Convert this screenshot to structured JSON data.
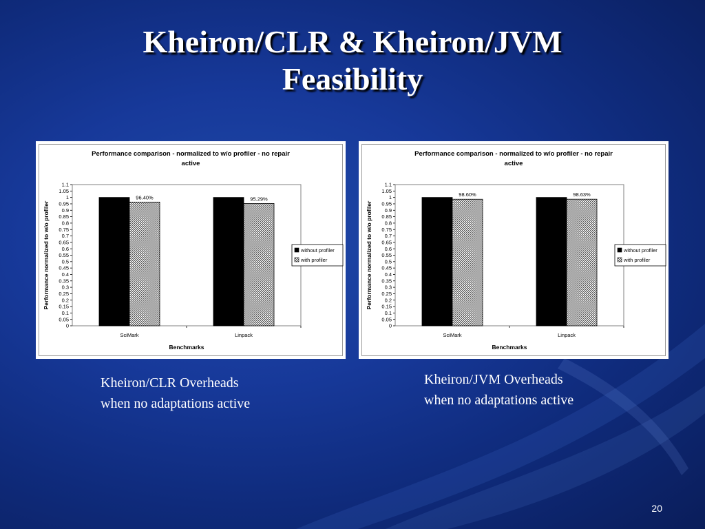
{
  "slide": {
    "title_line1": "Kheiron/CLR & Kheiron/JVM",
    "title_line2": "Feasibility",
    "page_number": "20"
  },
  "captions": [
    {
      "line1": "Kheiron/CLR Overheads",
      "line2": "when no adaptations active"
    },
    {
      "line1": "Kheiron/JVM Overheads",
      "line2": "when no adaptations active"
    }
  ],
  "colors": {
    "bar_without": "#000000",
    "bar_with": "#d8d8d8"
  },
  "chart_data": [
    {
      "type": "bar",
      "title": "Performance comparison - normalized to w/o profiler - no repair active",
      "title_line1": "Performance comparison - normalized to w/o profiler - no repair",
      "title_line2": "active",
      "xlabel": "Benchmarks",
      "ylabel": "Performance normalized to w/o profiler",
      "ylim": [
        0,
        1.1
      ],
      "ytick_step": 0.05,
      "categories": [
        "SciMark",
        "Linpack"
      ],
      "series": [
        {
          "name": "without profiler",
          "values": [
            1,
            1
          ],
          "labels": [
            "",
            ""
          ]
        },
        {
          "name": "with profiler",
          "values": [
            0.964,
            0.9529
          ],
          "labels": [
            "96.40%",
            "95.29%"
          ]
        }
      ],
      "legend": "right",
      "grid": false
    },
    {
      "type": "bar",
      "title": "Performance comparison - normalized to w/o profiler - no repair active",
      "title_line1": "Performance comparison - normalized to w/o profiler - no repair",
      "title_line2": "active",
      "xlabel": "Benchmarks",
      "ylabel": "Performance normalized to w/o profiler",
      "ylim": [
        0,
        1.1
      ],
      "ytick_step": 0.05,
      "categories": [
        "SciMark",
        "Linpack"
      ],
      "series": [
        {
          "name": "without profiler",
          "values": [
            1,
            1
          ],
          "labels": [
            "",
            ""
          ]
        },
        {
          "name": "with profiler",
          "values": [
            0.986,
            0.9863
          ],
          "labels": [
            "98.60%",
            "98.63%"
          ]
        }
      ],
      "legend": "right",
      "grid": false
    }
  ]
}
